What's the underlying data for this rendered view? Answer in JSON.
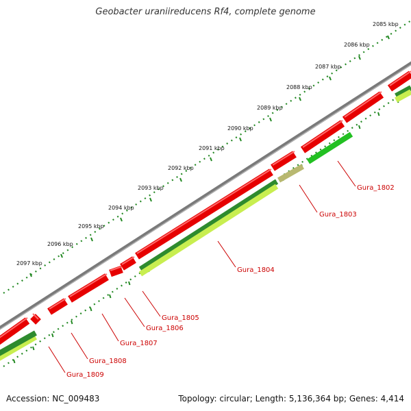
{
  "header": {
    "title": "Geobacter uraniireducens Rf4, complete genome"
  },
  "footer": {
    "accession": "Accession: NC_009483",
    "stats": "Topology: circular; Length: 5,136,364 bp; Genes: 4,414"
  },
  "scale": {
    "unit": "kbp",
    "ticks": [
      "2085 kbp",
      "2086 kbp",
      "2087 kbp",
      "2088 kbp",
      "2089 kbp",
      "2090 kbp",
      "2091 kbp",
      "2092 kbp",
      "2093 kbp",
      "2094 kbp",
      "2095 kbp",
      "2096 kbp",
      "2097 kbp"
    ]
  },
  "colors": {
    "forward_cds": "#e60000",
    "reverse_cds_green": "#2e8b2e",
    "reverse_cds_bright": "#22c022",
    "reverse_cds_lime": "#c8ee50",
    "reverse_cds_olive": "#b8b870",
    "backbone": "#7a7a7a",
    "tick_dots": "#228822",
    "gene_label": "#cc0000"
  },
  "genes": [
    {
      "name": "Gura_1802"
    },
    {
      "name": "Gura_1803"
    },
    {
      "name": "Gura_1804"
    },
    {
      "name": "Gura_1805"
    },
    {
      "name": "Gura_1806"
    },
    {
      "name": "Gura_1807"
    },
    {
      "name": "Gura_1808"
    },
    {
      "name": "Gura_1809"
    }
  ]
}
